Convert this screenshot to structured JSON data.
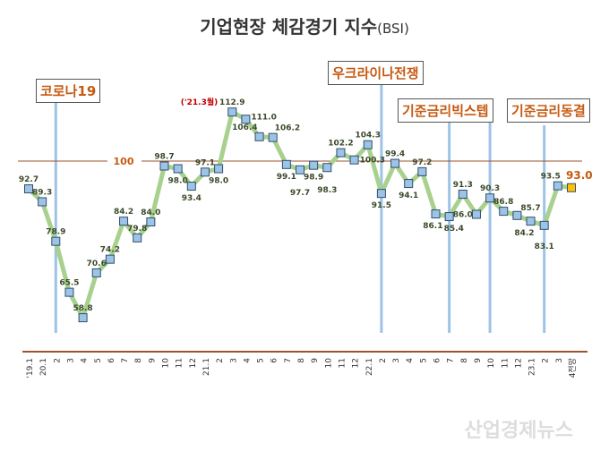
{
  "chart_data": {
    "type": "line",
    "title": "기업현장 체감경기 지수",
    "title_suffix": "(BSI)",
    "categories": [
      "'19.1",
      "20.1",
      "2",
      "3",
      "4",
      "5",
      "6",
      "7",
      "8",
      "9",
      "10",
      "11",
      "12",
      "21.1",
      "2",
      "3",
      "4",
      "5",
      "6",
      "7",
      "8",
      "9",
      "10",
      "11",
      "12",
      "22.1",
      "2",
      "3",
      "4",
      "5",
      "6",
      "7",
      "8",
      "9",
      "10",
      "11",
      "12",
      "23.1",
      "2",
      "3",
      "4전망"
    ],
    "values": [
      92.7,
      89.3,
      78.9,
      65.5,
      58.8,
      70.6,
      74.2,
      84.2,
      79.8,
      84.0,
      98.7,
      98.0,
      93.4,
      97.1,
      98.0,
      112.9,
      111.0,
      106.4,
      106.2,
      99.1,
      97.7,
      98.9,
      98.3,
      102.2,
      100.3,
      104.3,
      91.5,
      99.4,
      94.1,
      97.2,
      86.1,
      85.4,
      91.3,
      86.0,
      90.3,
      86.8,
      85.7,
      84.2,
      83.1,
      93.5,
      93.0
    ],
    "reference_line": {
      "value": 100,
      "label": "100"
    },
    "peak_annotation": "('21.3월)",
    "events": [
      {
        "label": "코로나19",
        "index": 2
      },
      {
        "label": "우크라이나전쟁",
        "index": 26
      },
      {
        "label": "기준금리빅스텝",
        "index": 31
      },
      {
        "label": "기준금리동결",
        "index": 34
      },
      {
        "label": "",
        "index": 38
      }
    ],
    "colors": {
      "line": "#a9d18e",
      "marker": "#9dc3e6",
      "forecast_marker": "#ffc000",
      "reference": "#a0522d",
      "event_line": "#9dc3e6",
      "event_text": "#c55a11"
    }
  },
  "watermark": "산업경제뉴스"
}
